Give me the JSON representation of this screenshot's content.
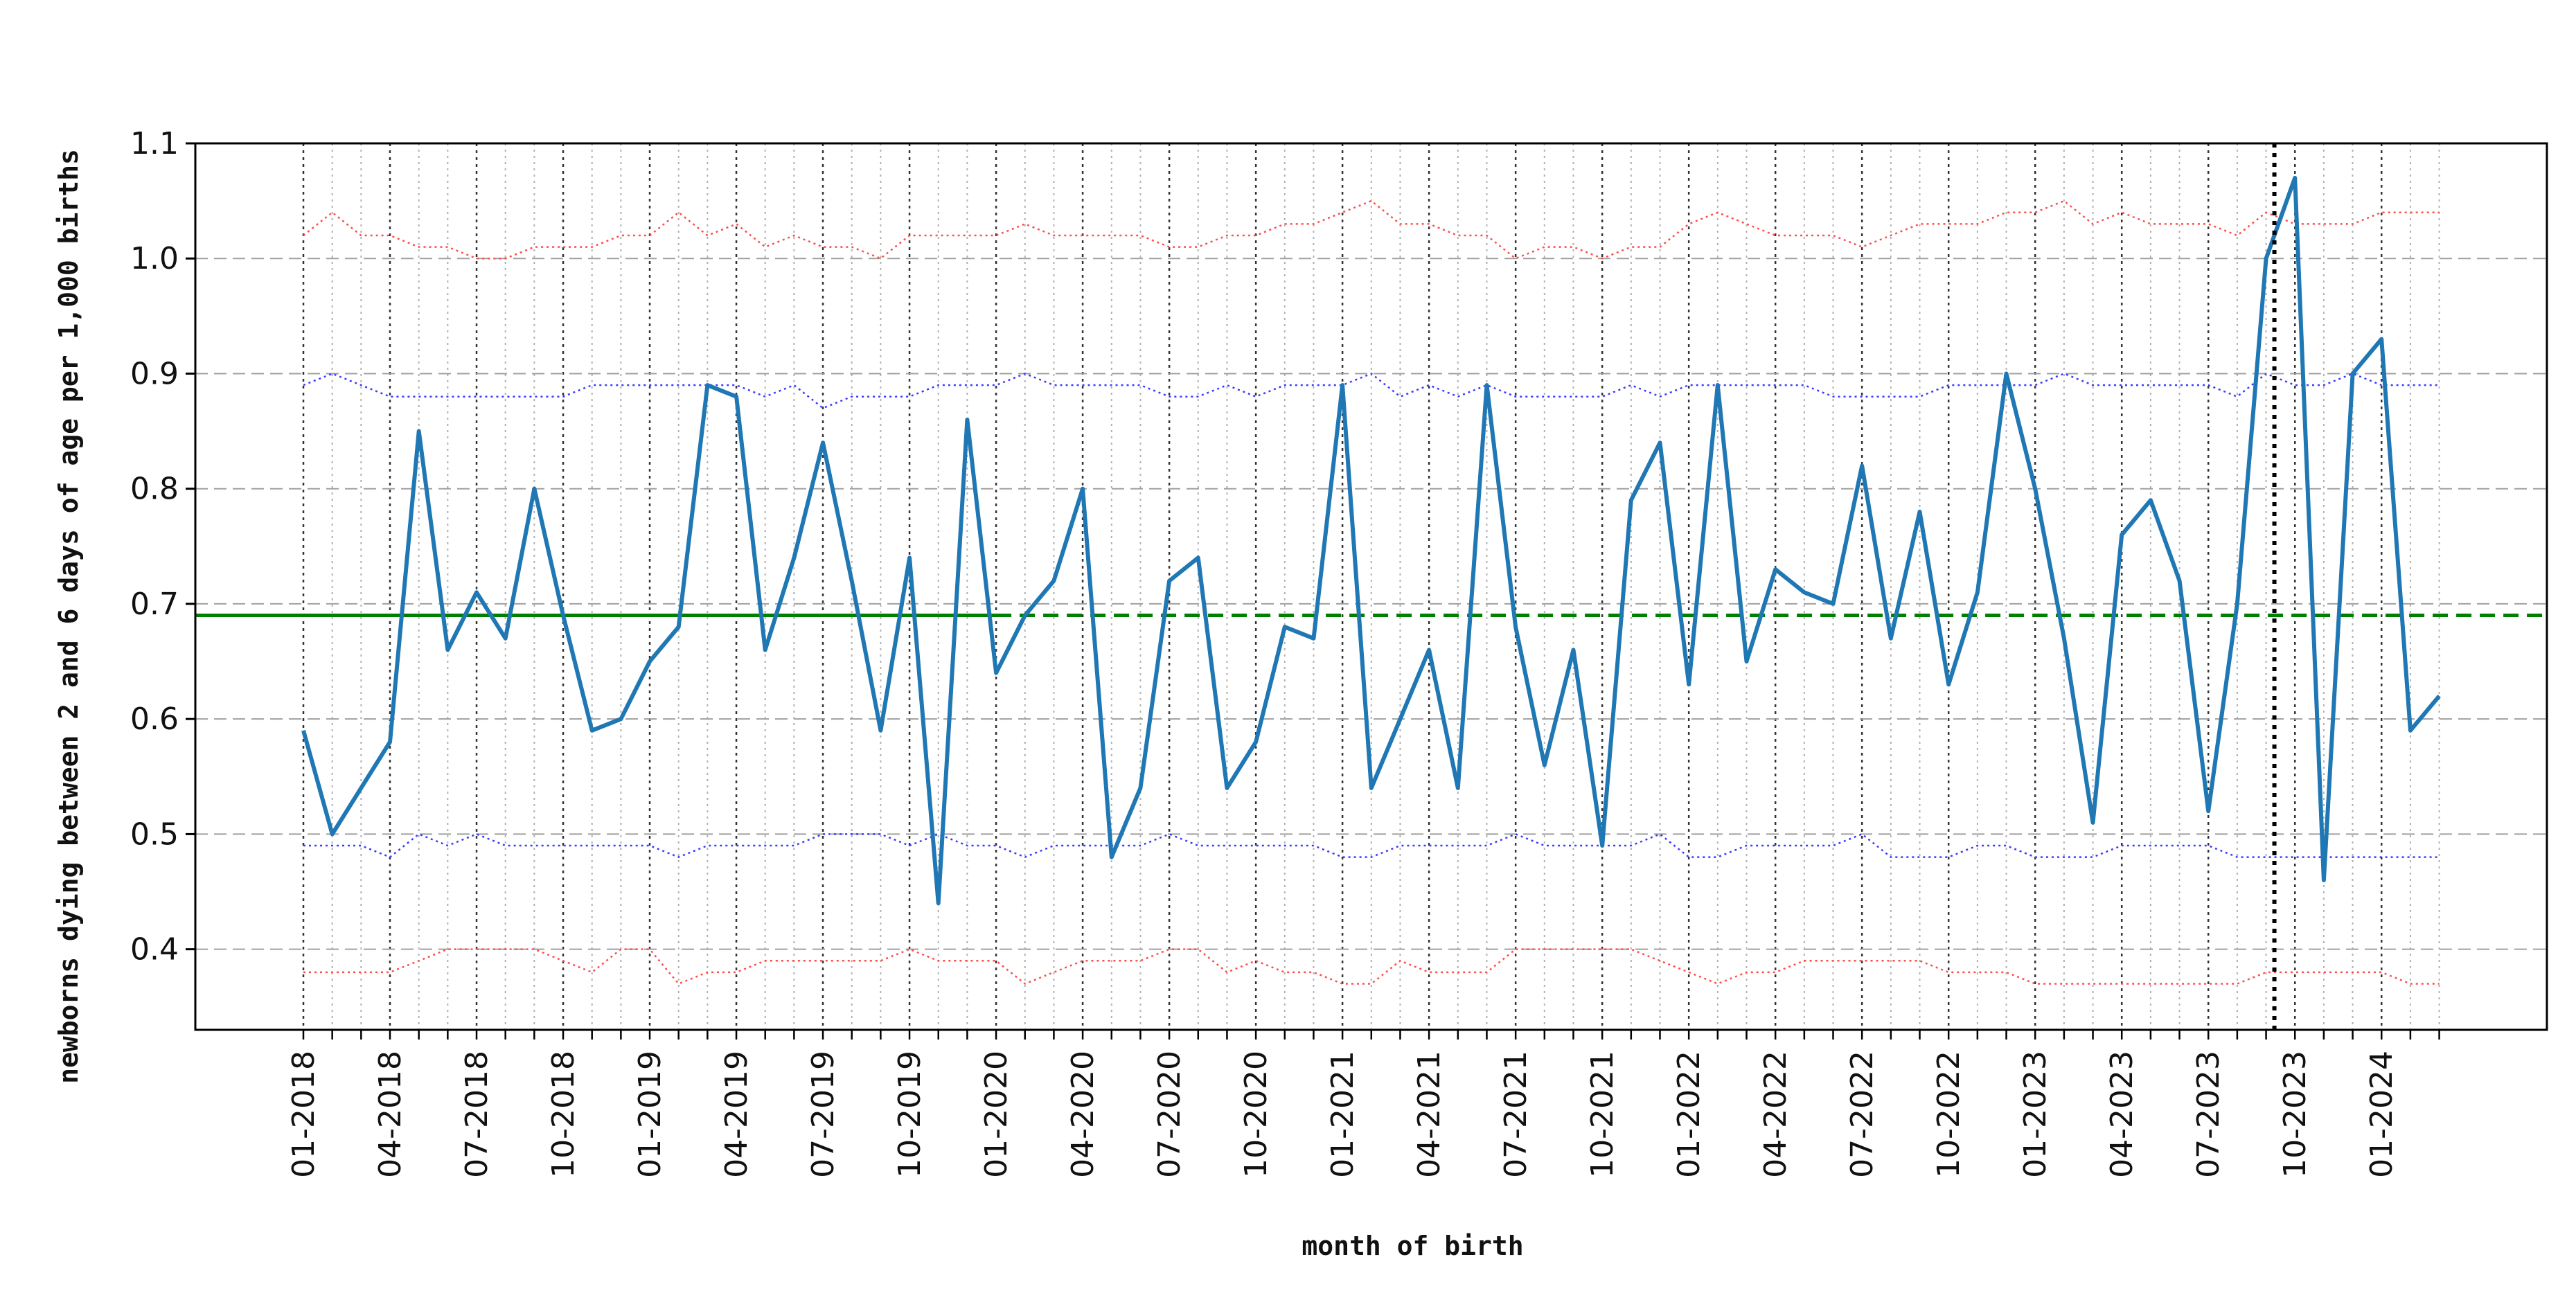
{
  "chart_data": {
    "type": "line",
    "title": "",
    "xlabel": "month of birth",
    "ylabel": "newborns dying between 2 and 6 days of age per 1,000 births",
    "ylim": [
      0.33,
      1.1
    ],
    "yticks": [
      0.4,
      0.5,
      0.6,
      0.7,
      0.8,
      0.9,
      1.0,
      1.1
    ],
    "ytick_labels": [
      "0.4",
      "0.5",
      "0.6",
      "0.7",
      "0.8",
      "0.9",
      "1.0",
      "1.1"
    ],
    "x": [
      "01-2018",
      "02-2018",
      "03-2018",
      "04-2018",
      "05-2018",
      "06-2018",
      "07-2018",
      "08-2018",
      "09-2018",
      "10-2018",
      "11-2018",
      "12-2018",
      "01-2019",
      "02-2019",
      "03-2019",
      "04-2019",
      "05-2019",
      "06-2019",
      "07-2019",
      "08-2019",
      "09-2019",
      "10-2019",
      "11-2019",
      "12-2019",
      "01-2020",
      "02-2020",
      "03-2020",
      "04-2020",
      "05-2020",
      "06-2020",
      "07-2020",
      "08-2020",
      "09-2020",
      "10-2020",
      "11-2020",
      "12-2020",
      "01-2021",
      "02-2021",
      "03-2021",
      "04-2021",
      "05-2021",
      "06-2021",
      "07-2021",
      "08-2021",
      "09-2021",
      "10-2021",
      "11-2021",
      "12-2021",
      "01-2022",
      "02-2022",
      "03-2022",
      "04-2022",
      "05-2022",
      "06-2022",
      "07-2022",
      "08-2022",
      "09-2022",
      "10-2022",
      "11-2022",
      "12-2022",
      "01-2023",
      "02-2023",
      "03-2023",
      "04-2023",
      "05-2023",
      "06-2023",
      "07-2023",
      "08-2023",
      "09-2023",
      "10-2023",
      "11-2023",
      "12-2023",
      "01-2024",
      "02-2024",
      "03-2024"
    ],
    "xtick_labels": [
      "01-2018",
      "04-2018",
      "07-2018",
      "10-2018",
      "01-2019",
      "04-2019",
      "07-2019",
      "10-2019",
      "01-2020",
      "04-2020",
      "07-2020",
      "10-2020",
      "01-2021",
      "04-2021",
      "07-2021",
      "10-2021",
      "01-2022",
      "04-2022",
      "07-2022",
      "10-2022",
      "01-2023",
      "04-2023",
      "07-2023",
      "10-2023",
      "01-2024"
    ],
    "series": [
      {
        "role": "observed",
        "color": "#1f77b4",
        "values": [
          0.59,
          0.5,
          0.54,
          0.58,
          0.85,
          0.66,
          0.71,
          0.67,
          0.8,
          0.69,
          0.59,
          0.6,
          0.65,
          0.68,
          0.89,
          0.88,
          0.66,
          0.74,
          0.84,
          0.72,
          0.59,
          0.74,
          0.44,
          0.86,
          0.64,
          0.69,
          0.72,
          0.8,
          0.48,
          0.54,
          0.72,
          0.74,
          0.54,
          0.58,
          0.68,
          0.67,
          0.89,
          0.54,
          0.6,
          0.66,
          0.54,
          0.89,
          0.68,
          0.56,
          0.66,
          0.49,
          0.79,
          0.84,
          0.63,
          0.89,
          0.65,
          0.73,
          0.71,
          0.7,
          0.82,
          0.67,
          0.78,
          0.63,
          0.71,
          0.9,
          0.8,
          0.67,
          0.51,
          0.76,
          0.79,
          0.72,
          0.52,
          0.7,
          1.0,
          1.07,
          0.46,
          0.9,
          0.93,
          0.59,
          0.62
        ]
      },
      {
        "role": "upper-outer-bound",
        "color": "#ff4d4d",
        "values": [
          1.02,
          1.04,
          1.02,
          1.02,
          1.01,
          1.01,
          1.0,
          1.0,
          1.01,
          1.01,
          1.01,
          1.02,
          1.02,
          1.04,
          1.02,
          1.03,
          1.01,
          1.02,
          1.01,
          1.01,
          1.0,
          1.02,
          1.02,
          1.02,
          1.02,
          1.03,
          1.02,
          1.02,
          1.02,
          1.02,
          1.01,
          1.01,
          1.02,
          1.02,
          1.03,
          1.03,
          1.04,
          1.05,
          1.03,
          1.03,
          1.02,
          1.02,
          1.0,
          1.01,
          1.01,
          1.0,
          1.01,
          1.01,
          1.03,
          1.04,
          1.03,
          1.02,
          1.02,
          1.02,
          1.01,
          1.02,
          1.03,
          1.03,
          1.03,
          1.04,
          1.04,
          1.05,
          1.03,
          1.04,
          1.03,
          1.03,
          1.03,
          1.02,
          1.04,
          1.03,
          1.03,
          1.03,
          1.04,
          1.04,
          1.04
        ]
      },
      {
        "role": "upper-inner-bound",
        "color": "#3a3aff",
        "values": [
          0.89,
          0.9,
          0.89,
          0.88,
          0.88,
          0.88,
          0.88,
          0.88,
          0.88,
          0.88,
          0.89,
          0.89,
          0.89,
          0.89,
          0.89,
          0.89,
          0.88,
          0.89,
          0.87,
          0.88,
          0.88,
          0.88,
          0.89,
          0.89,
          0.89,
          0.9,
          0.89,
          0.89,
          0.89,
          0.89,
          0.88,
          0.88,
          0.89,
          0.88,
          0.89,
          0.89,
          0.89,
          0.9,
          0.88,
          0.89,
          0.88,
          0.89,
          0.88,
          0.88,
          0.88,
          0.88,
          0.89,
          0.88,
          0.89,
          0.89,
          0.89,
          0.89,
          0.89,
          0.88,
          0.88,
          0.88,
          0.88,
          0.89,
          0.89,
          0.89,
          0.89,
          0.9,
          0.89,
          0.89,
          0.89,
          0.89,
          0.89,
          0.88,
          0.9,
          0.89,
          0.89,
          0.9,
          0.89,
          0.89,
          0.89
        ]
      },
      {
        "role": "lower-inner-bound",
        "color": "#3a3aff",
        "values": [
          0.49,
          0.49,
          0.49,
          0.48,
          0.5,
          0.49,
          0.5,
          0.49,
          0.49,
          0.49,
          0.49,
          0.49,
          0.49,
          0.48,
          0.49,
          0.49,
          0.49,
          0.49,
          0.5,
          0.5,
          0.5,
          0.49,
          0.5,
          0.49,
          0.49,
          0.48,
          0.49,
          0.49,
          0.49,
          0.49,
          0.5,
          0.49,
          0.49,
          0.49,
          0.49,
          0.49,
          0.48,
          0.48,
          0.49,
          0.49,
          0.49,
          0.49,
          0.5,
          0.49,
          0.49,
          0.49,
          0.49,
          0.5,
          0.48,
          0.48,
          0.49,
          0.49,
          0.49,
          0.49,
          0.5,
          0.48,
          0.48,
          0.48,
          0.49,
          0.49,
          0.48,
          0.48,
          0.48,
          0.49,
          0.49,
          0.49,
          0.49,
          0.48,
          0.48,
          0.48,
          0.48,
          0.48,
          0.48,
          0.48,
          0.48
        ]
      },
      {
        "role": "lower-outer-bound",
        "color": "#ff4d4d",
        "values": [
          0.38,
          0.38,
          0.38,
          0.38,
          0.39,
          0.4,
          0.4,
          0.4,
          0.4,
          0.39,
          0.38,
          0.4,
          0.4,
          0.37,
          0.38,
          0.38,
          0.39,
          0.39,
          0.39,
          0.39,
          0.39,
          0.4,
          0.39,
          0.39,
          0.39,
          0.37,
          0.38,
          0.39,
          0.39,
          0.39,
          0.4,
          0.4,
          0.38,
          0.39,
          0.38,
          0.38,
          0.37,
          0.37,
          0.39,
          0.38,
          0.38,
          0.38,
          0.4,
          0.4,
          0.4,
          0.4,
          0.4,
          0.39,
          0.38,
          0.37,
          0.38,
          0.38,
          0.39,
          0.39,
          0.39,
          0.39,
          0.39,
          0.38,
          0.38,
          0.38,
          0.37,
          0.37,
          0.37,
          0.37,
          0.37,
          0.37,
          0.37,
          0.37,
          0.38,
          0.38,
          0.38,
          0.38,
          0.38,
          0.37,
          0.37
        ]
      }
    ],
    "reference_line": {
      "value": 0.69,
      "color": "#008000",
      "solid_until": "01-2020"
    },
    "marker_line": {
      "x": "09-2023",
      "color": "#000000"
    },
    "grid": true,
    "legend": "none"
  }
}
